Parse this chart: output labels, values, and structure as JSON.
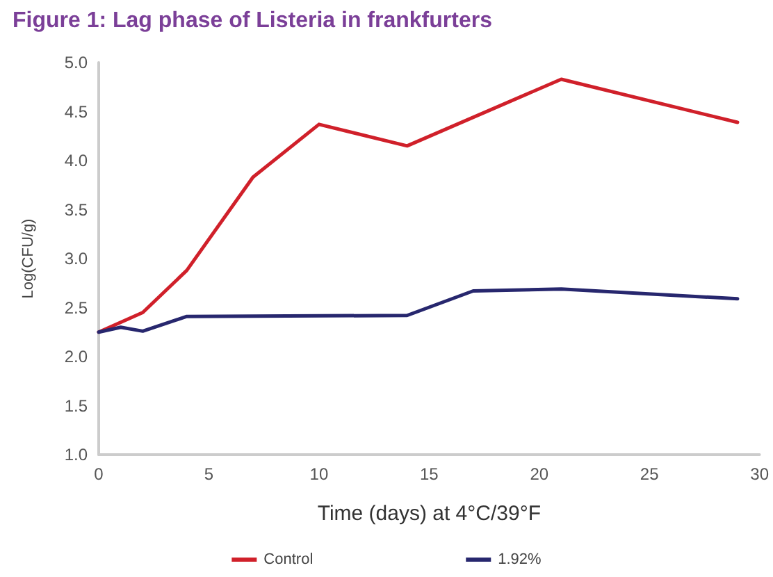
{
  "chart_data": {
    "type": "line",
    "title": "Figure 1: Lag phase of Listeria in frankfurters",
    "xlabel": "Time (days) at 4°C/39°F",
    "ylabel": "Log(CFU/g)",
    "xlim": [
      0,
      30
    ],
    "xticks": [
      0,
      5,
      10,
      15,
      20,
      25,
      30
    ],
    "ylim": [
      1,
      5
    ],
    "yticks": [
      {
        "value": 1,
        "label": "1.0"
      },
      1.5,
      {
        "value": 2,
        "label": "2.0"
      },
      2.5,
      {
        "value": 3,
        "label": "3.0"
      },
      3.5,
      {
        "value": 4,
        "label": "4.0"
      },
      4.5,
      {
        "value": 5,
        "label": "5.0"
      }
    ],
    "series": [
      {
        "name": "Control",
        "color": "#d0202a",
        "x": [
          0,
          2,
          4,
          7,
          10,
          14,
          21,
          29
        ],
        "values": [
          2.25,
          2.45,
          2.88,
          3.83,
          4.37,
          4.15,
          4.83,
          4.39
        ]
      },
      {
        "name": "1.92%",
        "color": "#27276e",
        "x": [
          0,
          1,
          2,
          4,
          14,
          17,
          21,
          29
        ],
        "values": [
          2.25,
          2.3,
          2.26,
          2.41,
          2.42,
          2.67,
          2.69,
          2.59
        ]
      }
    ],
    "grid": false,
    "legend": "bottom",
    "marker": "none",
    "line_style": "solid"
  }
}
